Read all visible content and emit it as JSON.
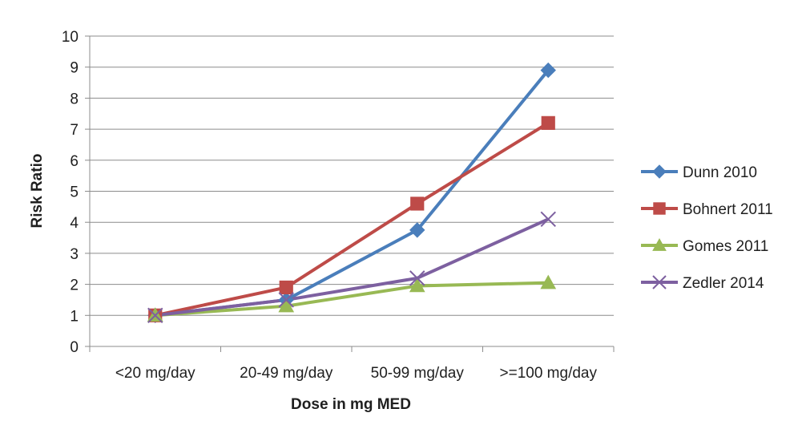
{
  "chart_data": {
    "type": "line",
    "title": "",
    "xlabel": "Dose in mg MED",
    "ylabel": "Risk Ratio",
    "categories": [
      "<20 mg/day",
      "20-49 mg/day",
      "50-99 mg/day",
      ">=100 mg/day"
    ],
    "ylim": [
      0,
      10
    ],
    "yticks": [
      0,
      1,
      2,
      3,
      4,
      5,
      6,
      7,
      8,
      9,
      10
    ],
    "grid": "horizontal",
    "legend_position": "right",
    "series": [
      {
        "name": "Dunn 2010",
        "values": [
          1.0,
          1.5,
          3.75,
          8.9
        ],
        "color": "#4a7ebb",
        "marker": "diamond"
      },
      {
        "name": "Bohnert 2011",
        "values": [
          1.0,
          1.9,
          4.6,
          7.2
        ],
        "color": "#be4b48",
        "marker": "square"
      },
      {
        "name": "Gomes 2011",
        "values": [
          1.0,
          1.3,
          1.95,
          2.05
        ],
        "color": "#98b954",
        "marker": "triangle"
      },
      {
        "name": "Zedler 2014",
        "values": [
          1.0,
          1.5,
          2.2,
          4.1
        ],
        "color": "#7d60a0",
        "marker": "x"
      }
    ]
  }
}
